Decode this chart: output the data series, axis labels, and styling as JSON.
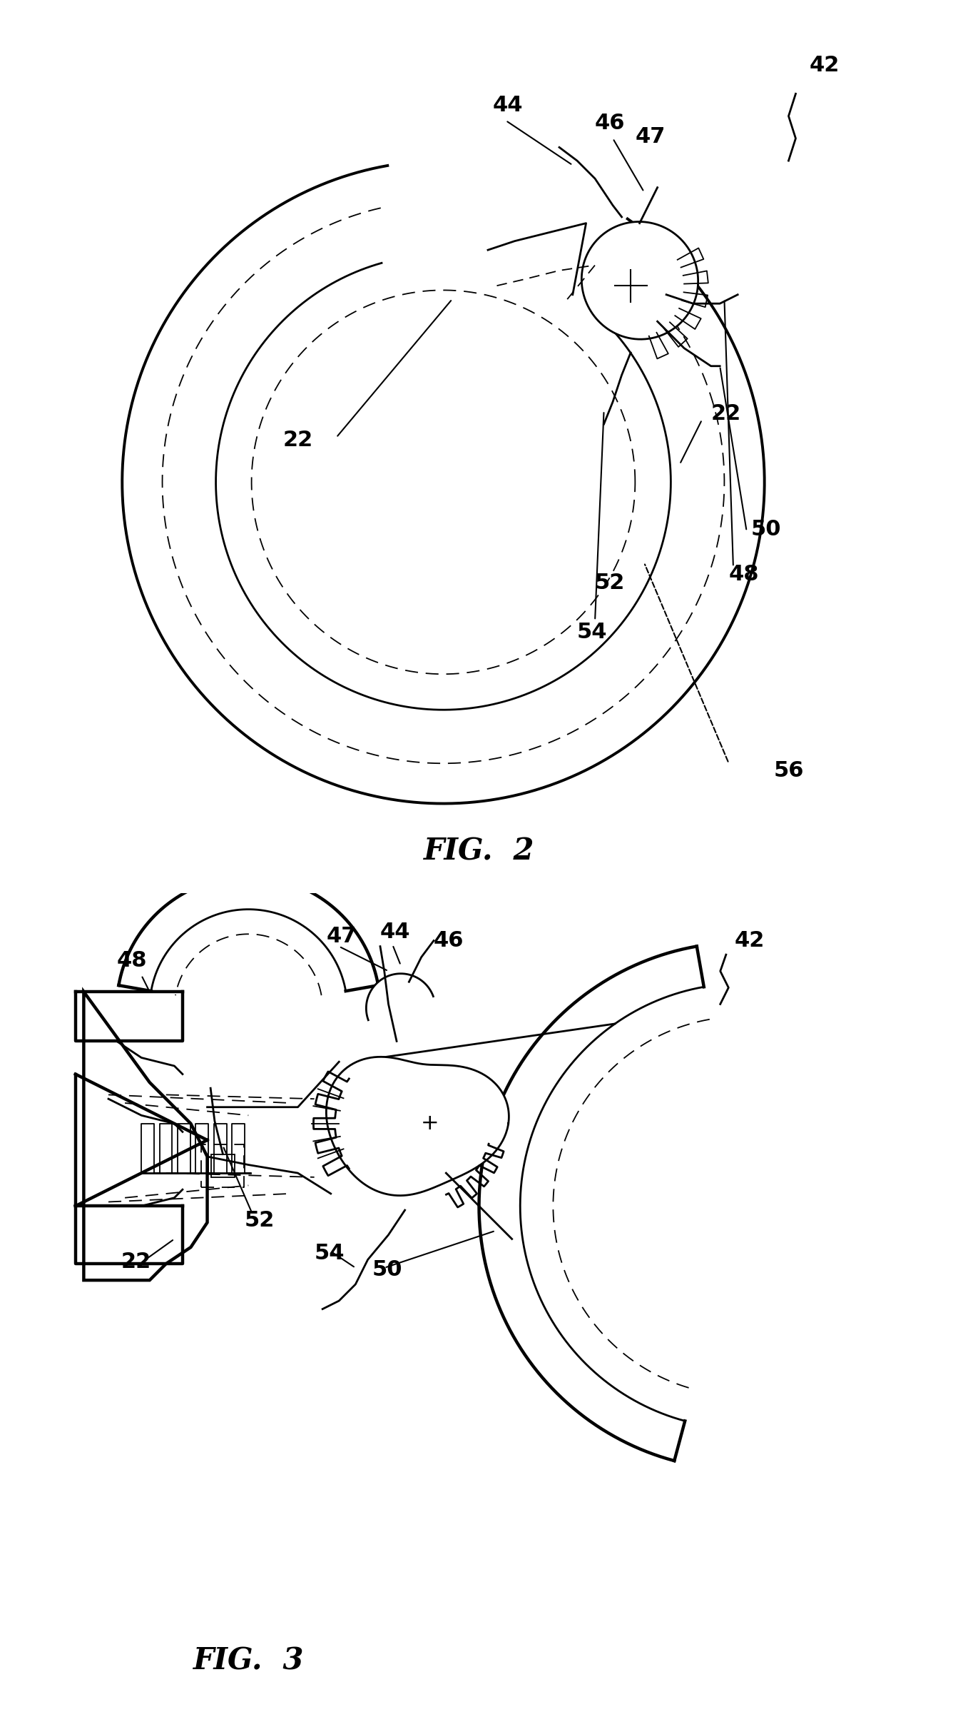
{
  "fig2_title": "FIG.  2",
  "fig3_title": "FIG.  3",
  "background_color": "#ffffff",
  "line_color": "#000000",
  "figsize": [
    13.43,
    24.05
  ],
  "dpi": 100
}
